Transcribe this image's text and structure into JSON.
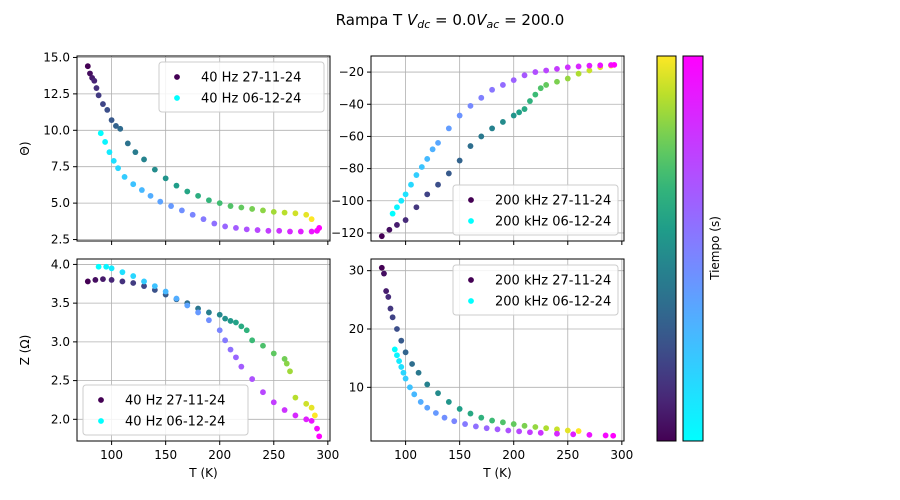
{
  "figure": {
    "title_prefix": "Rampa T ",
    "title_vdc_symbol": "V",
    "title_vdc_sub": "dc",
    "title_vdc_value": " = 0.0",
    "title_vac_symbol": "V",
    "title_vac_sub": "ac",
    "title_vac_value": " = 200.0",
    "colorbar_label": "Tiempo (s)"
  },
  "chart_data": [
    {
      "type": "scatter",
      "panel": "top-left",
      "title": "",
      "xlabel": "",
      "ylabel": "Θ)",
      "xlim": [
        68,
        302
      ],
      "ylim": [
        2.4,
        15.1
      ],
      "xticks": [
        100,
        150,
        200,
        250,
        300
      ],
      "show_xticklabels": false,
      "yticks": [
        2.5,
        5.0,
        7.5,
        10.0,
        12.5,
        15.0
      ],
      "ytick_labels": [
        "2.5",
        "5.0",
        "7.5",
        "10.0",
        "12.5",
        "15.0"
      ],
      "grid": true,
      "legend_position": "upper right",
      "series": [
        {
          "name": "40 Hz 27-11-24",
          "colormap": "viridis",
          "x": [
            78,
            80,
            82,
            84,
            86,
            88,
            92,
            96,
            100,
            104,
            108,
            115,
            122,
            130,
            140,
            150,
            160,
            170,
            180,
            190,
            200,
            210,
            220,
            230,
            240,
            250,
            260,
            270,
            280,
            285
          ],
          "y": [
            14.4,
            13.9,
            13.6,
            13.4,
            12.9,
            12.4,
            11.8,
            11.4,
            10.7,
            10.3,
            10.1,
            9.1,
            8.5,
            8.0,
            7.3,
            6.7,
            6.2,
            5.8,
            5.5,
            5.2,
            5.0,
            4.8,
            4.7,
            4.6,
            4.5,
            4.4,
            4.35,
            4.3,
            4.2,
            3.9
          ]
        },
        {
          "name": "40 Hz 06-12-24",
          "colormap": "cool",
          "x": [
            90,
            94,
            98,
            102,
            106,
            112,
            120,
            128,
            136,
            145,
            155,
            165,
            175,
            185,
            195,
            205,
            215,
            225,
            235,
            245,
            255,
            265,
            275,
            285,
            290,
            292
          ],
          "y": [
            9.8,
            9.2,
            8.5,
            7.9,
            7.4,
            6.8,
            6.3,
            5.9,
            5.5,
            5.1,
            4.8,
            4.5,
            4.2,
            3.9,
            3.6,
            3.4,
            3.3,
            3.2,
            3.15,
            3.1,
            3.1,
            3.05,
            3.05,
            3.05,
            3.1,
            3.3
          ]
        }
      ]
    },
    {
      "type": "scatter",
      "panel": "top-right",
      "title": "",
      "xlabel": "",
      "ylabel": "",
      "xlim": [
        68,
        302
      ],
      "ylim": [
        -125,
        -10
      ],
      "xticks": [
        100,
        150,
        200,
        250,
        300
      ],
      "show_xticklabels": false,
      "yticks": [
        -120,
        -100,
        -80,
        -60,
        -40,
        -20
      ],
      "ytick_labels": [
        "−120",
        "−100",
        "−80",
        "−60",
        "−40",
        "−20"
      ],
      "grid": true,
      "legend_position": "lower right",
      "series": [
        {
          "name": "200 kHz 27-11-24",
          "colormap": "viridis",
          "x": [
            78,
            85,
            92,
            100,
            110,
            120,
            130,
            140,
            150,
            160,
            170,
            180,
            190,
            200,
            205,
            210,
            215,
            220,
            225,
            230,
            240,
            250,
            260,
            270,
            280,
            290
          ],
          "y": [
            -122,
            -118,
            -115,
            -112,
            -104,
            -96,
            -90,
            -83,
            -75,
            -66,
            -60,
            -55,
            -51,
            -47,
            -45,
            -43,
            -38,
            -34,
            -30,
            -28,
            -26,
            -24,
            -21,
            -19,
            -17,
            -16
          ]
        },
        {
          "name": "200 kHz 06-12-24",
          "colormap": "cool",
          "x": [
            88,
            92,
            96,
            100,
            105,
            110,
            115,
            120,
            125,
            130,
            140,
            150,
            160,
            170,
            180,
            190,
            200,
            210,
            220,
            230,
            240,
            250,
            260,
            270,
            280,
            290,
            293
          ],
          "y": [
            -108,
            -104,
            -100,
            -96,
            -90,
            -84,
            -79,
            -74,
            -68,
            -64,
            -55,
            -47,
            -41,
            -36,
            -31,
            -28,
            -25,
            -22,
            -20,
            -19,
            -18,
            -17,
            -16.5,
            -16,
            -15.8,
            -15.6,
            -15.5
          ]
        }
      ]
    },
    {
      "type": "scatter",
      "panel": "bottom-left",
      "title": "",
      "xlabel": "T (K)",
      "ylabel": "Z (Ω)",
      "xlim": [
        68,
        302
      ],
      "ylim": [
        1.72,
        4.07
      ],
      "xticks": [
        100,
        150,
        200,
        250,
        300
      ],
      "xtick_labels": [
        "100",
        "150",
        "200",
        "250",
        "300"
      ],
      "show_xticklabels": true,
      "yticks": [
        2.0,
        2.5,
        3.0,
        3.5,
        4.0
      ],
      "ytick_labels": [
        "2.0",
        "2.5",
        "3.0",
        "3.5",
        "4.0"
      ],
      "grid": true,
      "legend_position": "lower left",
      "series": [
        {
          "name": "40 Hz 27-11-24",
          "colormap": "viridis",
          "x": [
            78,
            85,
            92,
            100,
            110,
            120,
            130,
            140,
            150,
            160,
            170,
            180,
            190,
            200,
            205,
            210,
            215,
            220,
            225,
            230,
            240,
            250,
            260,
            262,
            265,
            270,
            280,
            285,
            288
          ],
          "y": [
            3.78,
            3.8,
            3.81,
            3.8,
            3.78,
            3.76,
            3.72,
            3.67,
            3.61,
            3.55,
            3.5,
            3.43,
            3.38,
            3.35,
            3.3,
            3.27,
            3.25,
            3.2,
            3.15,
            3.02,
            2.95,
            2.85,
            2.78,
            2.72,
            2.62,
            2.28,
            2.2,
            2.15,
            2.05
          ]
        },
        {
          "name": "40 Hz 06-12-24",
          "colormap": "cool",
          "x": [
            88,
            95,
            100,
            110,
            120,
            130,
            140,
            150,
            160,
            170,
            180,
            190,
            200,
            205,
            210,
            215,
            220,
            230,
            240,
            250,
            260,
            270,
            280,
            285,
            290,
            292
          ],
          "y": [
            3.97,
            3.97,
            3.95,
            3.9,
            3.85,
            3.78,
            3.72,
            3.65,
            3.56,
            3.47,
            3.38,
            3.28,
            3.15,
            3.02,
            2.9,
            2.8,
            2.68,
            2.52,
            2.35,
            2.22,
            2.12,
            2.05,
            2.0,
            1.98,
            1.88,
            1.78
          ]
        }
      ]
    },
    {
      "type": "scatter",
      "panel": "bottom-right",
      "title": "",
      "xlabel": "T (K)",
      "ylabel": "",
      "xlim": [
        68,
        302
      ],
      "ylim": [
        0.8,
        32
      ],
      "xticks": [
        100,
        150,
        200,
        250,
        300
      ],
      "xtick_labels": [
        "100",
        "150",
        "200",
        "250",
        "300"
      ],
      "show_xticklabels": true,
      "yticks": [
        10,
        20,
        30
      ],
      "ytick_labels": [
        "10",
        "20",
        "30"
      ],
      "grid": true,
      "legend_position": "upper right",
      "series": [
        {
          "name": "200 kHz 27-11-24",
          "colormap": "viridis",
          "x": [
            78,
            80,
            82,
            84,
            86,
            88,
            92,
            96,
            100,
            106,
            112,
            120,
            130,
            140,
            150,
            160,
            170,
            180,
            190,
            200,
            210,
            220,
            230,
            240,
            250,
            260
          ],
          "y": [
            30.5,
            29.5,
            26.5,
            25.5,
            23.5,
            22.0,
            20.0,
            18.0,
            16.0,
            14.0,
            12.5,
            10.5,
            9.0,
            7.5,
            6.3,
            5.5,
            4.8,
            4.3,
            4.0,
            3.7,
            3.4,
            3.2,
            3.0,
            2.8,
            2.6,
            2.5
          ]
        },
        {
          "name": "200 kHz 06-12-24",
          "colormap": "cool",
          "x": [
            90,
            92,
            94,
            96,
            98,
            100,
            104,
            108,
            114,
            120,
            128,
            136,
            145,
            155,
            165,
            175,
            185,
            195,
            205,
            215,
            225,
            240,
            255,
            270,
            285,
            292
          ],
          "y": [
            16.5,
            15.5,
            14.5,
            13.5,
            12.5,
            11.5,
            10.0,
            8.8,
            7.5,
            6.5,
            5.6,
            4.8,
            4.2,
            3.7,
            3.3,
            3.0,
            2.8,
            2.6,
            2.45,
            2.3,
            2.2,
            2.05,
            1.95,
            1.85,
            1.75,
            1.7
          ]
        }
      ]
    }
  ]
}
